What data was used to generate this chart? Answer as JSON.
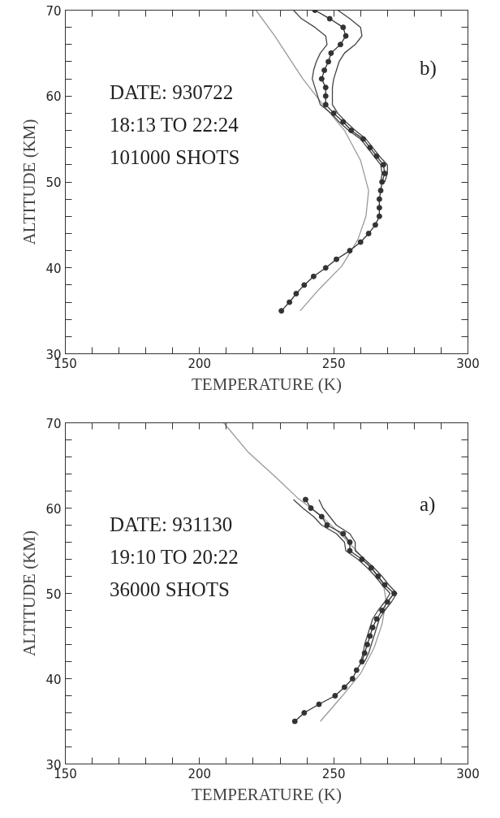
{
  "chart_data": [
    {
      "type": "line",
      "xlabel": "TEMPERATURE (K)",
      "ylabel": "ALTITUDE (KM)",
      "xlim": [
        150,
        300
      ],
      "ylim": [
        30,
        70
      ],
      "xticks": [
        150,
        {
          "value": 160,
          "label": null
        },
        {
          "value": 170,
          "label": null
        },
        {
          "value": 180,
          "label": null
        },
        {
          "value": 190,
          "label": null
        },
        200,
        {
          "value": 210,
          "label": null
        },
        {
          "value": 220,
          "label": null
        },
        {
          "value": 230,
          "label": null
        },
        {
          "value": 240,
          "label": null
        },
        250,
        {
          "value": 260,
          "label": null
        },
        {
          "value": 270,
          "label": null
        },
        {
          "value": 280,
          "label": null
        },
        {
          "value": 290,
          "label": null
        },
        300
      ],
      "yticks": [
        30,
        {
          "value": 32,
          "label": null
        },
        {
          "value": 34,
          "label": null
        },
        {
          "value": 36,
          "label": null
        },
        {
          "value": 38,
          "label": null
        },
        40,
        {
          "value": 42,
          "label": null
        },
        {
          "value": 44,
          "label": null
        },
        {
          "value": 46,
          "label": null
        },
        {
          "value": 48,
          "label": null
        },
        50,
        {
          "value": 52,
          "label": null
        },
        {
          "value": 54,
          "label": null
        },
        {
          "value": 56,
          "label": null
        },
        {
          "value": 58,
          "label": null
        },
        60,
        {
          "value": 62,
          "label": null
        },
        {
          "value": 64,
          "label": null
        },
        {
          "value": 66,
          "label": null
        },
        {
          "value": 68,
          "label": null
        },
        70
      ],
      "grid": false,
      "annotations": [
        "DATE: 930722",
        "18:13 TO 22:24",
        "101000 SHOTS",
        "b)"
      ],
      "series": [
        {
          "color": "#999999",
          "marker": "none",
          "x": [
            221,
            228,
            238.5,
            246,
            254,
            260,
            263,
            262,
            259,
            253,
            244.5,
            237.5
          ],
          "values": [
            70,
            67,
            62,
            59,
            56,
            52.5,
            49,
            46,
            43.3,
            40.2,
            37.5,
            35
          ]
        },
        {
          "color": "#444444",
          "marker": "none",
          "x": [
            235,
            238,
            243,
            247,
            247.5,
            245,
            243.5,
            242.5,
            242,
            243,
            244,
            245,
            249,
            252,
            255.5,
            260,
            262.5,
            265,
            267.5,
            268,
            267.5
          ],
          "values": [
            70,
            69,
            68,
            67,
            66,
            65,
            64,
            63,
            62,
            61,
            60,
            59,
            58,
            57,
            56,
            55,
            54,
            53,
            52,
            51,
            50
          ]
        },
        {
          "color": "#444444",
          "marker": "none",
          "x": [
            251.5,
            256,
            260,
            260.5,
            258,
            254,
            252,
            251,
            250,
            249.5,
            249.5,
            249.5,
            251.5,
            254.5,
            258,
            262,
            264.5,
            267,
            270,
            270,
            269
          ],
          "values": [
            70,
            69,
            68,
            67,
            66,
            65,
            64,
            63,
            62,
            61,
            60,
            59,
            58,
            57,
            56,
            55,
            54,
            53,
            52,
            51,
            50
          ]
        },
        {
          "color": "#333333",
          "marker": "circle",
          "x": [
            243,
            248.5,
            253.5,
            254.5,
            252.5,
            249,
            248,
            246.5,
            245.5,
            247,
            247,
            247,
            250,
            253.5,
            256.5,
            261,
            263.5,
            266,
            268.5,
            269,
            268,
            267.5,
            267,
            267,
            267,
            265.5,
            263,
            260,
            256,
            251,
            247,
            242.5,
            239,
            236,
            233.5,
            230.5
          ],
          "values": [
            70,
            69,
            68,
            67,
            66,
            65,
            64,
            63,
            62,
            61,
            60,
            59,
            58,
            57,
            56,
            55,
            54,
            53,
            52,
            51,
            50,
            49,
            48,
            47,
            46,
            45,
            44,
            43,
            42,
            41,
            40,
            39,
            38,
            37,
            36,
            35
          ]
        }
      ]
    },
    {
      "type": "line",
      "xlabel": "TEMPERATURE (K)",
      "ylabel": "ALTITUDE (KM)",
      "xlim": [
        150,
        300
      ],
      "ylim": [
        30,
        70
      ],
      "xticks": [
        150,
        {
          "value": 160,
          "label": null
        },
        {
          "value": 170,
          "label": null
        },
        {
          "value": 180,
          "label": null
        },
        {
          "value": 190,
          "label": null
        },
        200,
        {
          "value": 210,
          "label": null
        },
        {
          "value": 220,
          "label": null
        },
        {
          "value": 230,
          "label": null
        },
        {
          "value": 240,
          "label": null
        },
        250,
        {
          "value": 260,
          "label": null
        },
        {
          "value": 270,
          "label": null
        },
        {
          "value": 280,
          "label": null
        },
        {
          "value": 290,
          "label": null
        },
        300
      ],
      "yticks": [
        30,
        {
          "value": 32,
          "label": null
        },
        {
          "value": 34,
          "label": null
        },
        {
          "value": 36,
          "label": null
        },
        {
          "value": 38,
          "label": null
        },
        40,
        {
          "value": 42,
          "label": null
        },
        {
          "value": 44,
          "label": null
        },
        {
          "value": 46,
          "label": null
        },
        {
          "value": 48,
          "label": null
        },
        50,
        {
          "value": 52,
          "label": null
        },
        {
          "value": 54,
          "label": null
        },
        {
          "value": 56,
          "label": null
        },
        {
          "value": 58,
          "label": null
        },
        60,
        {
          "value": 62,
          "label": null
        },
        {
          "value": 64,
          "label": null
        },
        {
          "value": 66,
          "label": null
        },
        {
          "value": 68,
          "label": null
        },
        70
      ],
      "grid": false,
      "annotations": [
        "DATE: 931130",
        "19:10 TO 20:22",
        "36000 SHOTS",
        "a)"
      ],
      "series": [
        {
          "color": "#999999",
          "marker": "none",
          "x": [
            209,
            218,
            228.5,
            236.5,
            245,
            254,
            262,
            268.5,
            269.5,
            268,
            265,
            260,
            253,
            245
          ],
          "values": [
            70,
            66.6,
            63.6,
            61.2,
            59.2,
            56.5,
            53.8,
            51.1,
            49.1,
            46.4,
            43.6,
            40.6,
            37.9,
            35
          ]
        },
        {
          "color": "#444444",
          "marker": "none",
          "x": [
            235,
            238.5,
            242.5,
            245.5,
            251,
            254,
            254.5,
            259,
            262.5,
            265.5,
            268,
            271,
            269,
            266.5,
            264.5,
            263.5,
            262.5,
            261.5,
            261,
            260
          ],
          "values": [
            61,
            60,
            59,
            58,
            57,
            56,
            55,
            54,
            53,
            52,
            51,
            50,
            49,
            48,
            47,
            46,
            45,
            44,
            43,
            42
          ]
        },
        {
          "color": "#444444",
          "marker": "none",
          "x": [
            244.5,
            246,
            248.5,
            251,
            256,
            258,
            258,
            261.5,
            265,
            268,
            270.5,
            273.5,
            271.5,
            269,
            267,
            266,
            265,
            264,
            263,
            261.5
          ],
          "values": [
            61,
            60,
            59,
            58,
            57,
            56,
            55,
            54,
            53,
            52,
            51,
            50,
            49,
            48,
            47,
            46,
            45,
            44,
            43,
            42
          ]
        },
        {
          "color": "#333333",
          "marker": "circle",
          "x": [
            239.5,
            241.5,
            245.5,
            247.5,
            253.5,
            256,
            256,
            260.5,
            264,
            266.5,
            269,
            272.5,
            270,
            268,
            266,
            264.5,
            263.5,
            262.5,
            261.5,
            260.5,
            258.5,
            257,
            254,
            250.5,
            244.5,
            239,
            235.5
          ],
          "values": [
            61,
            60,
            59,
            58,
            57,
            56,
            55,
            54,
            53,
            52,
            51,
            50,
            49,
            48,
            47,
            46,
            45,
            44,
            43,
            42,
            41,
            40,
            39,
            38,
            37,
            36,
            35
          ]
        }
      ]
    }
  ]
}
